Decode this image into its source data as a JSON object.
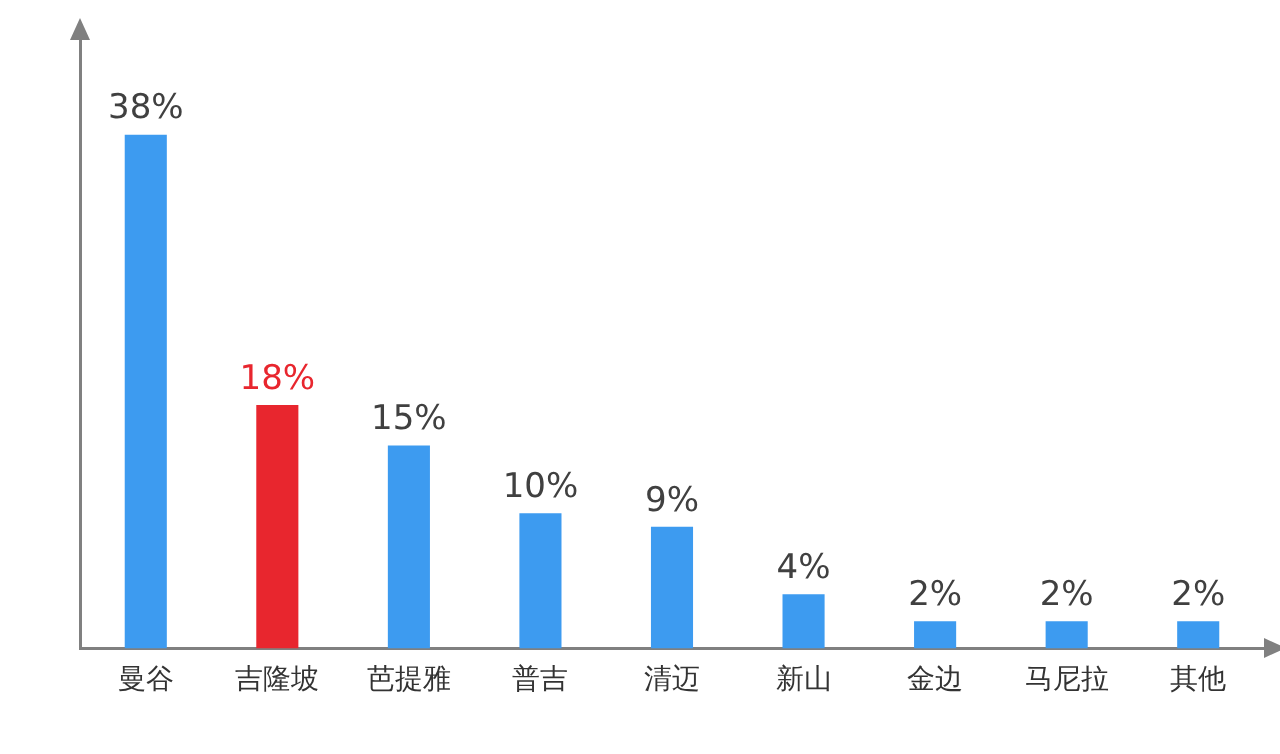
{
  "chart_data": {
    "type": "bar",
    "categories": [
      "曼谷",
      "吉隆坡",
      "芭提雅",
      "普吉",
      "清迈",
      "新山",
      "金边",
      "马尼拉",
      "其他"
    ],
    "values": [
      38,
      18,
      15,
      10,
      9,
      4,
      2,
      2,
      2
    ],
    "colors": [
      "#3d9bf0",
      "#e8262e",
      "#3d9bf0",
      "#3d9bf0",
      "#3d9bf0",
      "#3d9bf0",
      "#3d9bf0",
      "#3d9bf0",
      "#3d9bf0"
    ],
    "value_labels": [
      "38%",
      "18%",
      "15%",
      "10%",
      "9%",
      "4%",
      "2%",
      "2%",
      "2%"
    ],
    "tick_labels": "x",
    "grid": false,
    "legend": false
  }
}
